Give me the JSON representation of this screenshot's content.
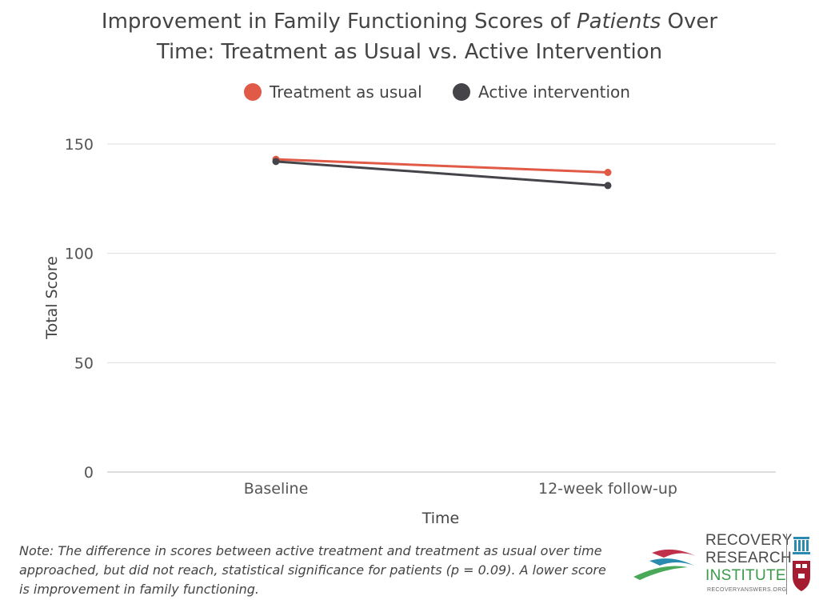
{
  "title": {
    "line1_pre": "Improvement in Family Functioning Scores of ",
    "line1_em": "Patients",
    "line1_post": " Over",
    "line2": "Time: Treatment as Usual vs. Active Intervention"
  },
  "note": "Note: The difference in scores between active treatment and treatment as usual over time approached, but did not reach, statistical significance for patients (p = 0.09). A lower score is improvement in family functioning.",
  "logo": {
    "line1": "RECOVERY",
    "line2": "RESEARCH",
    "line3": "INSTITUTE",
    "url": "RECOVERYANSWERS.ORG"
  },
  "chart_data": {
    "type": "line",
    "title": "Improvement in Family Functioning Scores of Patients Over Time: Treatment as Usual vs. Active Intervention",
    "categories": [
      "Baseline",
      "12-week follow-up"
    ],
    "xlabel": "Time",
    "ylabel": "Total Score",
    "ylim": [
      0,
      150
    ],
    "yticks": [
      0,
      50,
      100,
      150
    ],
    "grid": true,
    "legend_position": "top",
    "series": [
      {
        "name": "Treatment as usual",
        "color": "#e05a47",
        "values": [
          143,
          137
        ]
      },
      {
        "name": "Active intervention",
        "color": "#454449",
        "values": [
          142,
          131
        ]
      }
    ]
  }
}
